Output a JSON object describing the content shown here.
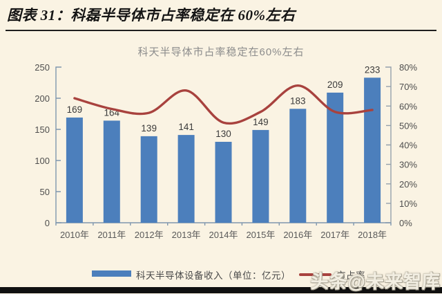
{
  "header": {
    "title": "图表 31：科磊半导体市占率稳定在 60%左右"
  },
  "watermark": "头条@未来智库",
  "chart_data": {
    "type": "bar",
    "subtype": "bar+line combo, dual axis",
    "title": "科天半导体市占率稳定在60%左右",
    "categories": [
      "2010年",
      "2011年",
      "2012年",
      "2013年",
      "2014年",
      "2015年",
      "2016年",
      "2017年",
      "2018年"
    ],
    "series": [
      {
        "name": "科天半导体设备收入（单位：亿元）",
        "type": "bar",
        "axis": "left",
        "color": "#4C7FBC",
        "values": [
          169,
          164,
          139,
          141,
          130,
          149,
          183,
          209,
          233
        ]
      },
      {
        "name": "市占率",
        "type": "line",
        "axis": "right",
        "color": "#A8423E",
        "unit": "%",
        "values": [
          64,
          58.5,
          56.5,
          68,
          51.5,
          57,
          70.5,
          57,
          58
        ]
      }
    ],
    "left_axis": {
      "min": 0,
      "max": 250,
      "step": 50,
      "suffix": ""
    },
    "right_axis": {
      "min": 0,
      "max": 80,
      "step": 10,
      "suffix": "%"
    },
    "grid": false,
    "legend_position": "bottom",
    "data_labels": "bar values shown above bars"
  },
  "colors": {
    "background": "#FAF3E3",
    "bar": "#4C7FBC",
    "line": "#A8423E",
    "header_rule": "#1E1E1E",
    "axis_left": "#7E96AE",
    "axis_right": "#93A0AC",
    "tick_text": "#4E4E4E",
    "bottom_bar": "#101010"
  }
}
